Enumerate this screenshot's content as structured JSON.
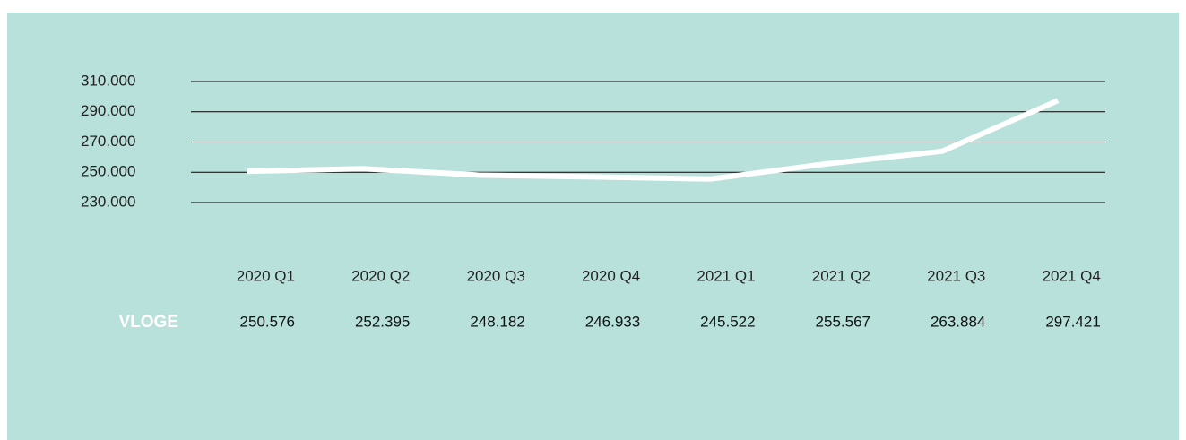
{
  "chart_data": {
    "type": "line",
    "categories": [
      "2020 Q1",
      "2020 Q2",
      "2020 Q3",
      "2020 Q4",
      "2021 Q1",
      "2021 Q2",
      "2021 Q3",
      "2021 Q4"
    ],
    "series": [
      {
        "name": "VLOGE",
        "color": "#ffffff",
        "values": [
          250576,
          252395,
          248182,
          246933,
          245522,
          255567,
          263884,
          297421
        ],
        "value_labels": [
          "250.576",
          "252.395",
          "248.182",
          "246.933",
          "245.522",
          "255.567",
          "263.884",
          "297.421"
        ]
      }
    ],
    "ylim": [
      230000,
      310000
    ],
    "yticks": [
      {
        "value": 310000,
        "label": "310.000"
      },
      {
        "value": 290000,
        "label": "290.000"
      },
      {
        "value": 270000,
        "label": "270.000"
      },
      {
        "value": 250000,
        "label": "250.000"
      },
      {
        "value": 230000,
        "label": "230.000"
      }
    ],
    "grid": true
  }
}
